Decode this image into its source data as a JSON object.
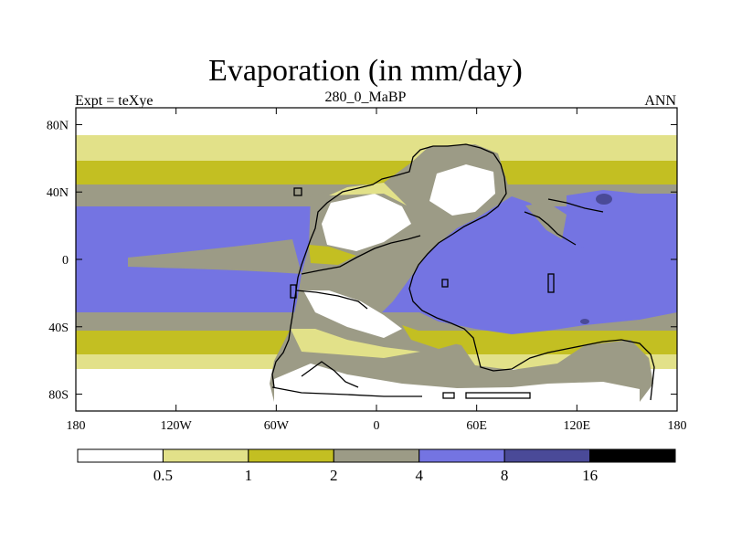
{
  "title": "Evaporation (in mm/day)",
  "left_label": "Expt = teXye",
  "center_label": "280_0_MaBP",
  "right_label": "ANN",
  "axes": {
    "lon_ticks": [
      {
        "value": -180,
        "label": "180"
      },
      {
        "value": -120,
        "label": "120W"
      },
      {
        "value": -60,
        "label": "60W"
      },
      {
        "value": 0,
        "label": "0"
      },
      {
        "value": 60,
        "label": "60E"
      },
      {
        "value": 120,
        "label": "120E"
      },
      {
        "value": 180,
        "label": "180"
      }
    ],
    "lat_ticks": [
      {
        "value": 80,
        "label": "80N"
      },
      {
        "value": 40,
        "label": "40N"
      },
      {
        "value": 0,
        "label": "0"
      },
      {
        "value": -40,
        "label": "40S"
      },
      {
        "value": -80,
        "label": "80S"
      }
    ],
    "lon_range": [
      -180,
      180
    ],
    "lat_range": [
      -90,
      90
    ]
  },
  "colorbar": {
    "colors": [
      "#ffffff",
      "#e2e189",
      "#c3bf22",
      "#9c9b86",
      "#7474e2",
      "#4a4a98",
      "#000000"
    ],
    "labels": [
      "0.5",
      "1",
      "2",
      "4",
      "8",
      "16"
    ]
  },
  "chart_data": {
    "type": "heatmap",
    "variable": "Evaporation",
    "units": "mm/day",
    "levels": [
      0.5,
      1,
      2,
      4,
      8,
      16
    ],
    "lon_range": [
      -180,
      180
    ],
    "lat_range": [
      -90,
      90
    ]
  }
}
